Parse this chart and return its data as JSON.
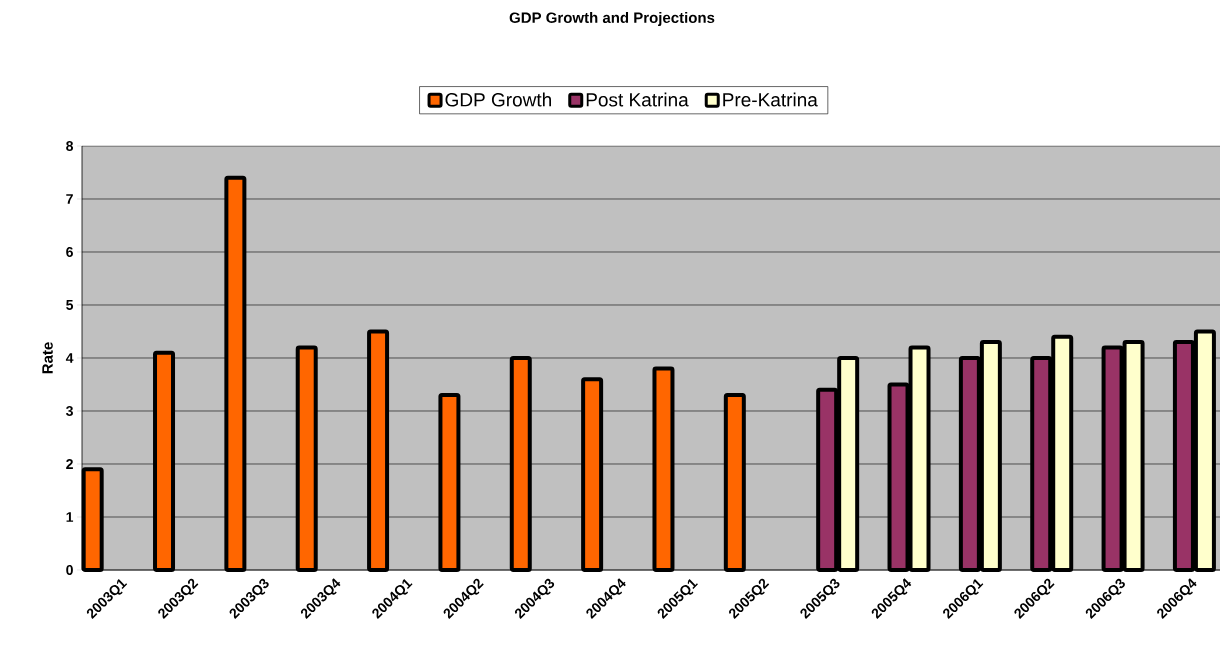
{
  "chart_data": {
    "type": "bar",
    "title": "GDP Growth and Projections",
    "ylabel": "Rate",
    "categories": [
      "2003Q1",
      "2003Q2",
      "2003Q3",
      "2003Q4",
      "2004Q1",
      "2004Q2",
      "2004Q3",
      "2004Q4",
      "2005Q1",
      "2005Q2",
      "2005Q3",
      "2005Q4",
      "2006Q1",
      "2006Q2",
      "2006Q3",
      "2006Q4"
    ],
    "series": [
      {
        "name": "GDP Growth",
        "color": "#ff6600",
        "values": [
          1.9,
          4.1,
          7.4,
          4.2,
          4.5,
          3.3,
          4.0,
          3.6,
          3.8,
          3.3,
          null,
          null,
          null,
          null,
          null,
          null
        ]
      },
      {
        "name": "Post Katrina",
        "color": "#993366",
        "values": [
          null,
          null,
          null,
          null,
          null,
          null,
          null,
          null,
          null,
          null,
          3.4,
          3.5,
          4.0,
          4.0,
          4.2,
          4.3
        ]
      },
      {
        "name": "Pre-Katrina",
        "color": "#ffffcc",
        "values": [
          null,
          null,
          null,
          null,
          null,
          null,
          null,
          null,
          null,
          null,
          4.0,
          4.2,
          4.3,
          4.4,
          4.3,
          4.5
        ]
      }
    ],
    "ylim": [
      0,
      8
    ],
    "yticks": [
      0,
      1,
      2,
      3,
      4,
      5,
      6,
      7,
      8
    ],
    "grid": "y",
    "legend": "top"
  }
}
